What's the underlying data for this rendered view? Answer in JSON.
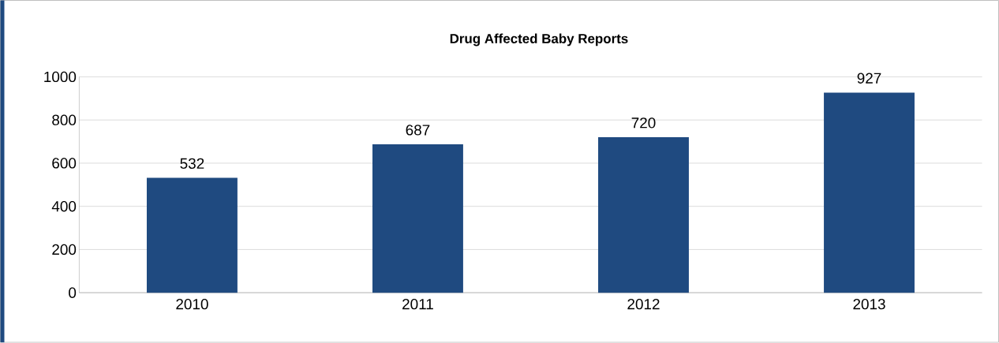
{
  "chart_data": {
    "type": "bar",
    "title": "Drug Affected Baby Reports",
    "categories": [
      "2010",
      "2011",
      "2012",
      "2013"
    ],
    "values": [
      532,
      687,
      720,
      927
    ],
    "color": "#1f4a80",
    "ylim": [
      0,
      1000
    ],
    "yticks": [
      0,
      200,
      400,
      600,
      800,
      1000
    ],
    "grid": "y",
    "data_labels": true
  }
}
